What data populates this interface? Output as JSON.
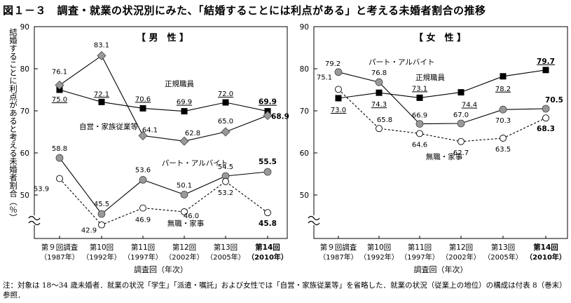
{
  "figure": {
    "title": "図１－３　調査・就業の状況別にみた、「結婚することには利点がある」と考える未婚者割合の推移",
    "footnote": "注：対象は 18～34 歳未婚者．就業の状況「学生」「派遣・嘱託」および女性では「自営・家族従業等」を省略した．就業の状況（従業上の地位）の構成は付表 8（巻末）参照．",
    "ylabel_vertical": "結婚することに利点があると考える未婚者割合（％）"
  },
  "chart_data": [
    {
      "type": "line",
      "title": "【 男　性 】",
      "categories": [
        {
          "round": "第９回調査",
          "year": "（1987年）"
        },
        {
          "round": "第10回",
          "year": "（1992年）"
        },
        {
          "round": "第11回",
          "year": "（1997年）"
        },
        {
          "round": "第12回",
          "year": "（2002年）"
        },
        {
          "round": "第13回",
          "year": "（2005年）"
        },
        {
          "round": "第14回",
          "year": "（2010年）"
        }
      ],
      "xlabel": "調査回（年次）",
      "ylim": [
        40,
        90
      ],
      "yticks": [
        50,
        60,
        70,
        80,
        90
      ],
      "axis_break": true,
      "series": [
        {
          "name": "正規職員",
          "marker": "square",
          "dashed": false,
          "values": [
            75.0,
            72.1,
            70.6,
            69.9,
            72.0,
            69.9
          ],
          "labels": [
            "75.0",
            "72.1",
            "70.6",
            "69.9",
            "72.0",
            "69.9"
          ]
        },
        {
          "name": "自営・家族従業等",
          "marker": "diamond",
          "dashed": false,
          "values": [
            76.1,
            83.1,
            64.1,
            62.8,
            65.0,
            68.9
          ],
          "labels": [
            "76.1",
            "83.1",
            "64.1",
            "62.8",
            "65.0",
            "68.9"
          ]
        },
        {
          "name": "パート・アルバイト",
          "marker": "circle-filled",
          "dashed": false,
          "values": [
            58.8,
            45.5,
            53.6,
            50.1,
            54.5,
            55.5
          ],
          "labels": [
            "58.8",
            "45.5",
            "53.6",
            "50.1",
            "54.5",
            "55.5"
          ]
        },
        {
          "name": "無職・家事",
          "marker": "circle-open",
          "dashed": true,
          "values": [
            53.9,
            42.9,
            46.9,
            46.0,
            53.2,
            45.8
          ],
          "labels": [
            "53.9",
            "42.9",
            "46.9",
            "46.0",
            "53.2",
            "45.8"
          ]
        }
      ]
    },
    {
      "type": "line",
      "title": "【 女　性 】",
      "categories": [
        {
          "round": "第９回調査",
          "year": "（1987年）"
        },
        {
          "round": "第10回",
          "year": "（1992年）"
        },
        {
          "round": "第11回",
          "year": "（1997年）"
        },
        {
          "round": "第12回",
          "year": "（2002年）"
        },
        {
          "round": "第13回",
          "year": "（2005年）"
        },
        {
          "round": "第14回",
          "year": "（2010年）"
        }
      ],
      "xlabel": "調査回（年次）",
      "ylim": [
        40,
        90
      ],
      "yticks": [
        50,
        60,
        70,
        80,
        90
      ],
      "axis_break": true,
      "series": [
        {
          "name": "正規職員",
          "marker": "square",
          "dashed": false,
          "values": [
            73.0,
            74.3,
            73.1,
            74.4,
            78.2,
            79.7
          ],
          "labels": [
            "73.0",
            "74.3",
            "73.1",
            "74.4",
            "78.2",
            "79.7"
          ]
        },
        {
          "name": "パート・アルバイト",
          "marker": "circle-filled",
          "dashed": false,
          "values": [
            79.2,
            76.8,
            66.9,
            67.0,
            70.3,
            70.5
          ],
          "labels": [
            "79.2",
            "76.8",
            "66.9",
            "67.0",
            "70.3",
            "70.5"
          ]
        },
        {
          "name": "無職・家事",
          "marker": "circle-open",
          "dashed": true,
          "values": [
            75.1,
            65.8,
            64.6,
            62.7,
            63.5,
            68.3
          ],
          "labels": [
            "75.1",
            "65.8",
            "64.6",
            "62.7",
            "63.5",
            "68.3"
          ]
        }
      ]
    }
  ]
}
